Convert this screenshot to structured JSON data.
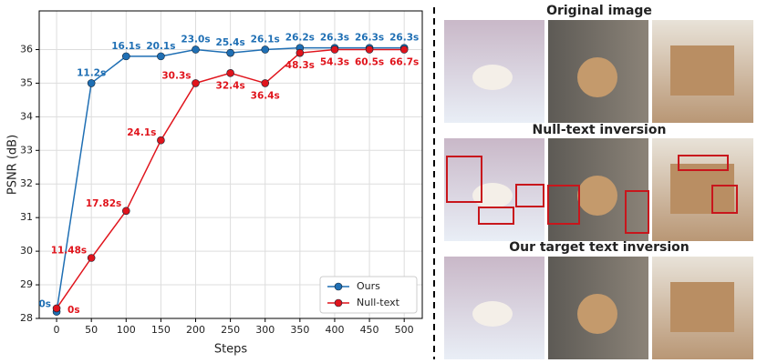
{
  "chart_data": {
    "type": "line",
    "x_label": "Steps",
    "y_label": "PSNR (dB)",
    "x": [
      0,
      50,
      100,
      150,
      200,
      250,
      300,
      350,
      400,
      450,
      500
    ],
    "series": [
      {
        "name": "Ours",
        "color": "#1f6fb4",
        "values": [
          28.2,
          35.0,
          35.8,
          35.8,
          36.0,
          35.9,
          36.0,
          36.05,
          36.05,
          36.05,
          36.05
        ],
        "time_labels": [
          "0s",
          "11.2s",
          "16.1s",
          "20.1s",
          "23.0s",
          "25.4s",
          "26.1s",
          "26.2s",
          "26.3s",
          "26.3s",
          "26.3s"
        ]
      },
      {
        "name": "Null-text",
        "color": "#e0141c",
        "values": [
          28.3,
          29.8,
          31.2,
          33.3,
          35.0,
          35.3,
          35.0,
          35.9,
          36.0,
          36.0,
          36.0
        ],
        "time_labels": [
          "0s",
          "11.48s",
          "17.82s",
          "24.1s",
          "30.3s",
          "32.4s",
          "36.4s",
          "48.3s",
          "54.3s",
          "60.5s",
          "66.7s"
        ]
      }
    ],
    "xlim": [
      -25,
      526
    ],
    "ylim": [
      28,
      37.15
    ],
    "xticks": [
      0,
      50,
      100,
      150,
      200,
      250,
      300,
      350,
      400,
      450,
      500
    ],
    "yticks": [
      28,
      29,
      30,
      31,
      32,
      33,
      34,
      35,
      36
    ],
    "grid": true,
    "legend": "lower right"
  },
  "image_panels": [
    "Original image",
    "Null-text inversion",
    "Our target text inversion"
  ]
}
